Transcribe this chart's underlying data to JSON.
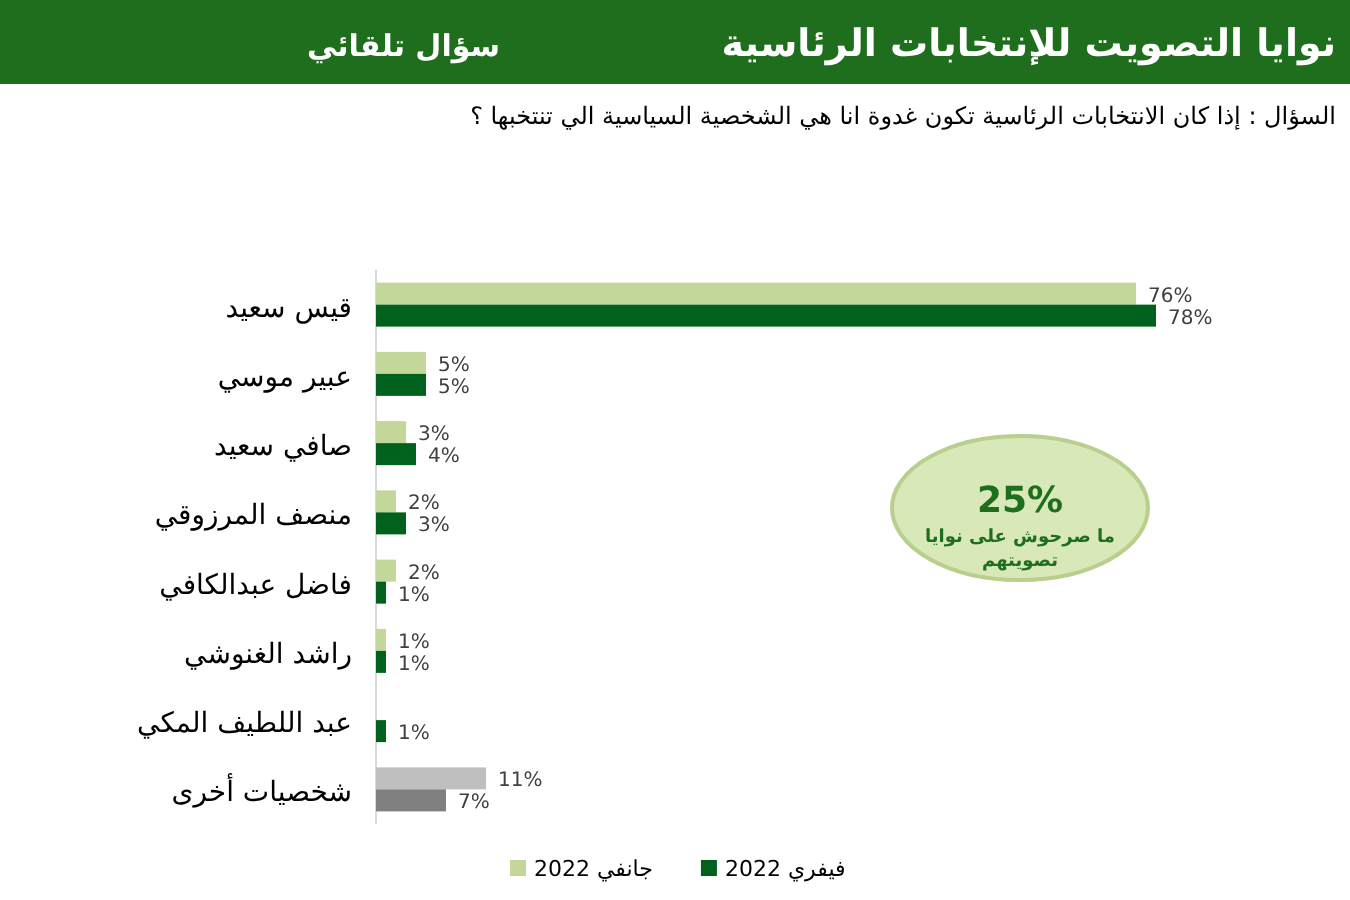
{
  "chart_data": {
    "type": "bar",
    "orientation": "horizontal",
    "title": "نوايا التصويت للإنتخابات الرئاسية",
    "subtitle": "سؤال تلقائي",
    "annotations": [
      "السؤال : إذا كان الانتخابات الرئاسية تكون غدوة انا هي الشخصية السياسية الي تنتخبها ؟",
      "25%",
      "ما صرحوش على نوايا تصويتهم"
    ],
    "categories": [
      "قيس سعيد",
      "عبير موسي",
      "صافي سعيد",
      "منصف المرزوقي",
      "فاضل عبدالكافي",
      "راشد الغنوشي",
      "عبد اللطيف المكي",
      "شخصيات أخرى"
    ],
    "series": [
      {
        "name": "جانفي 2022",
        "color": "#c4d79b",
        "colors": [
          "#c4d79b",
          "#c4d79b",
          "#c4d79b",
          "#c4d79b",
          "#c4d79b",
          "#c4d79b",
          null,
          "#bfbfbf"
        ],
        "values": [
          76,
          5,
          3,
          2,
          2,
          1,
          null,
          11
        ],
        "value_labels": [
          "76%",
          "5%",
          "3%",
          "2%",
          "2%",
          "1%",
          null,
          "11%"
        ]
      },
      {
        "name": "فيفري 2022",
        "color": "#00611c",
        "colors": [
          "#00611c",
          "#00611c",
          "#00611c",
          "#00611c",
          "#00611c",
          "#00611c",
          "#00611c",
          "#808080"
        ],
        "values": [
          78,
          5,
          4,
          3,
          1,
          1,
          1,
          7
        ],
        "value_labels": [
          "78%",
          "5%",
          "4%",
          "3%",
          "1%",
          "1%",
          "1%",
          "7%"
        ]
      }
    ],
    "legend": "bottom"
  }
}
